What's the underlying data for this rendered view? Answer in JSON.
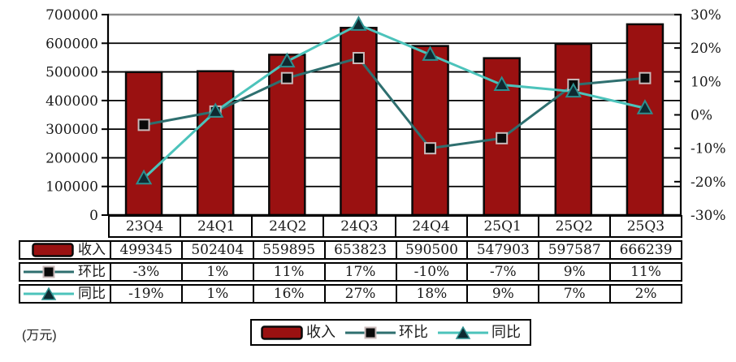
{
  "unit_label": "(万元)",
  "colors": {
    "bar_fill": "#9a1111",
    "bar_border": "#0a0a0a",
    "qoq_line": "#2e6f6f",
    "qoq_marker_fill": "#0a0a0a",
    "qoq_marker_stroke": "#c8baba",
    "yoy_line": "#4cc3bb",
    "yoy_marker_fill": "#0e2a31",
    "yoy_marker_stroke": "#2e8f8f",
    "grid": "#000000",
    "grid_top": "#8f8f8f",
    "axis": "#000000",
    "text": "#1a1a1a"
  },
  "chart_data": {
    "type": "combo-bar-line",
    "categories": [
      "23Q4",
      "24Q1",
      "24Q2",
      "24Q3",
      "24Q4",
      "25Q1",
      "25Q2",
      "25Q3"
    ],
    "series": [
      {
        "name": "收入",
        "type": "bar",
        "axis": "left",
        "values": [
          499345,
          502404,
          559895,
          653823,
          590500,
          547903,
          597587,
          666239
        ]
      },
      {
        "name": "环比",
        "type": "line",
        "marker": "square",
        "axis": "right",
        "values": [
          -3,
          1,
          11,
          17,
          -10,
          -7,
          9,
          11
        ],
        "labels": [
          "-3%",
          "1%",
          "11%",
          "17%",
          "-10%",
          "-7%",
          "9%",
          "11%"
        ]
      },
      {
        "name": "同比",
        "type": "line",
        "marker": "triangle",
        "axis": "right",
        "values": [
          -19,
          1,
          16,
          27,
          18,
          9,
          7,
          2
        ],
        "labels": [
          "-19%",
          "1%",
          "16%",
          "27%",
          "18%",
          "9%",
          "7%",
          "2%"
        ]
      }
    ],
    "left_axis": {
      "min": 0,
      "max": 700000,
      "step": 100000,
      "tick_labels": [
        "700000",
        "600000",
        "500000",
        "400000",
        "300000",
        "200000",
        "100000",
        "0"
      ]
    },
    "right_axis": {
      "min": -30,
      "max": 30,
      "step": 10,
      "tick_labels": [
        "30%",
        "20%",
        "10%",
        "0%",
        "-10%",
        "-20%",
        "-30%"
      ]
    },
    "unit": "万元",
    "grid": true,
    "legend_position": "bottom"
  },
  "legend": {
    "items": [
      {
        "label": "收入",
        "swatch": "bar"
      },
      {
        "label": "环比",
        "swatch": "square-line"
      },
      {
        "label": "同比",
        "swatch": "triangle-line"
      }
    ]
  }
}
